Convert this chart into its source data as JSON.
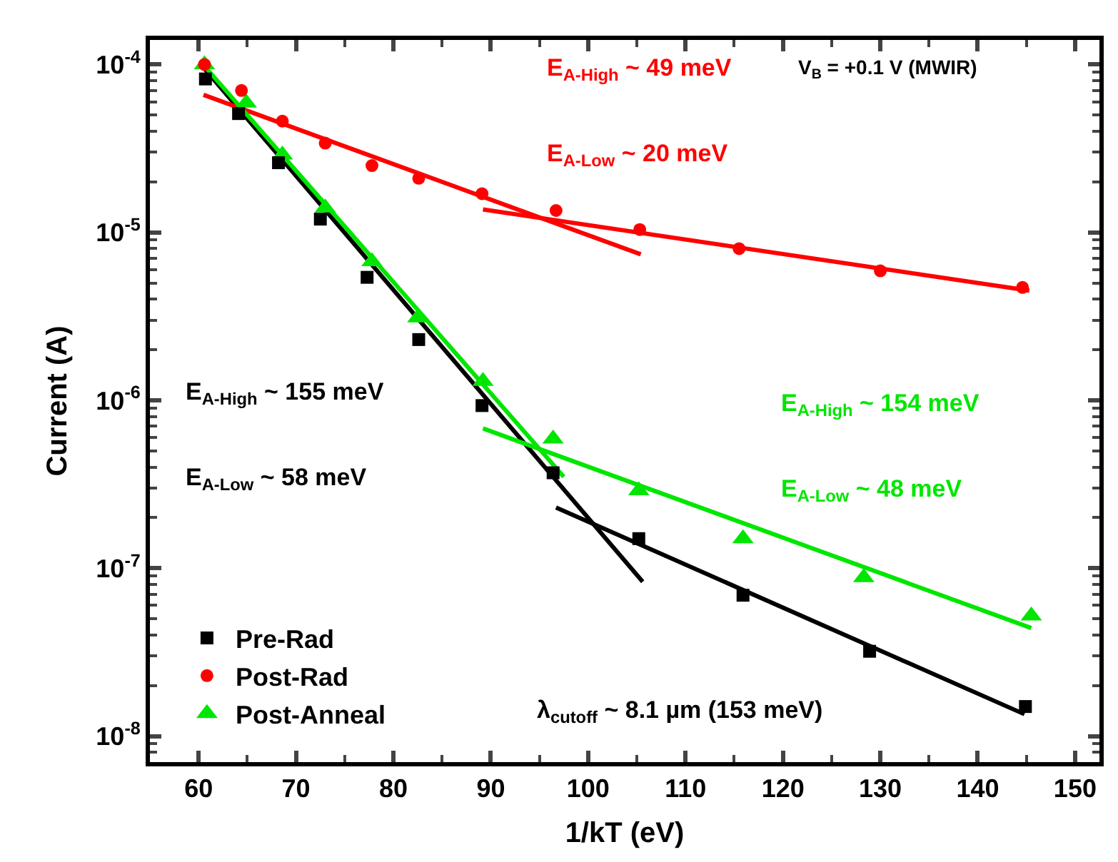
{
  "chart_data": {
    "type": "scatter",
    "xlabel": "1/kT (eV)",
    "ylabel": "Current (A)",
    "log": "y",
    "legend": "bottom left",
    "xlim": [
      55,
      152.5
    ],
    "xticks": [
      60,
      70,
      80,
      90,
      100,
      110,
      120,
      130,
      140,
      150
    ],
    "ylim": [
      7e-09,
      0.00014
    ],
    "yticks": [
      {
        "value": 1e-08,
        "label": "10$^{-8}$"
      },
      {
        "value": 1e-07,
        "label": "10$^{-7}$"
      },
      {
        "value": 1e-06,
        "label": "10$^{-6}$"
      },
      {
        "value": 1e-05,
        "label": "10$^{-5}$"
      },
      {
        "value": 0.0001,
        "label": "10$^{-4}$"
      }
    ],
    "series": [
      {
        "name": "Pre-Rad",
        "color": "#000000",
        "marker": "square",
        "x": [
          60.7,
          64.1,
          68.2,
          72.5,
          77.3,
          82.6,
          89.1,
          96.4,
          105.2,
          115.9,
          128.9,
          144.9
        ],
        "values": [
          8.2e-05,
          5.1e-05,
          2.6e-05,
          1.2e-05,
          5.4e-06,
          2.3e-06,
          9.3e-07,
          3.7e-07,
          1.5e-07,
          6.9e-08,
          3.2e-08,
          1.5e-08
        ]
      },
      {
        "name": "Post-Rad",
        "color": "#ff0000",
        "marker": "circle",
        "x": [
          60.6,
          64.4,
          68.6,
          73.0,
          77.8,
          82.6,
          89.1,
          96.7,
          105.3,
          115.5,
          130.0,
          144.6
        ],
        "values": [
          0.0001,
          7e-05,
          4.6e-05,
          3.4e-05,
          2.5e-05,
          2.1e-05,
          1.7e-05,
          1.35e-05,
          1.04e-05,
          8e-06,
          5.9e-06,
          4.7e-06
        ]
      },
      {
        "name": "Post-Anneal",
        "color": "#00e600",
        "marker": "triangle",
        "x": [
          60.6,
          64.9,
          68.6,
          73.0,
          77.8,
          82.5,
          89.2,
          96.4,
          105.2,
          115.9,
          128.3,
          145.5
        ],
        "values": [
          0.0001,
          5.9e-05,
          2.9e-05,
          1.4e-05,
          6.7e-06,
          3.1e-06,
          1.3e-06,
          5.9e-07,
          2.9e-07,
          1.5e-07,
          8.8e-08,
          5.2e-08
        ]
      },
      {
        "color": "#000000",
        "type": "line",
        "x": [
          60.5,
          105.6
        ],
        "values": [
          9.6e-05,
          8.3e-08
        ]
      },
      {
        "color": "#000000",
        "type": "line",
        "x": [
          96.7,
          144.8
        ],
        "values": [
          2.3e-07,
          1.35e-08
        ]
      },
      {
        "color": "#ff0000",
        "type": "line",
        "x": [
          60.5,
          105.4
        ],
        "values": [
          6.6e-05,
          7.4e-06
        ]
      },
      {
        "color": "#ff0000",
        "type": "line",
        "x": [
          89.2,
          145.3
        ],
        "values": [
          1.37e-05,
          4.5e-06
        ]
      },
      {
        "color": "#00e600",
        "type": "line",
        "x": [
          60.2,
          97.5
        ],
        "values": [
          0.000104,
          3.5e-07
        ]
      },
      {
        "color": "#00e600",
        "type": "line",
        "x": [
          89.2,
          145.5
        ],
        "values": [
          6.8e-07,
          4.4e-08
        ]
      }
    ],
    "annotations": [
      "E$_{A-High}$ ~ 49 meV",
      "E$_{A-Low}$ ~ 20 meV",
      "V$_{B}$ = +0.1 V (MWIR)",
      "E$_{A-High}$ ~ 155 meV",
      "E$_{A-Low}$ ~ 58 meV",
      "E$_{A-High}$ ~ 154 meV",
      "E$_{A-Low}$ ~ 48 meV",
      "λ$_{cutoff}$ ~ 8.1 µm (153 meV)"
    ]
  }
}
